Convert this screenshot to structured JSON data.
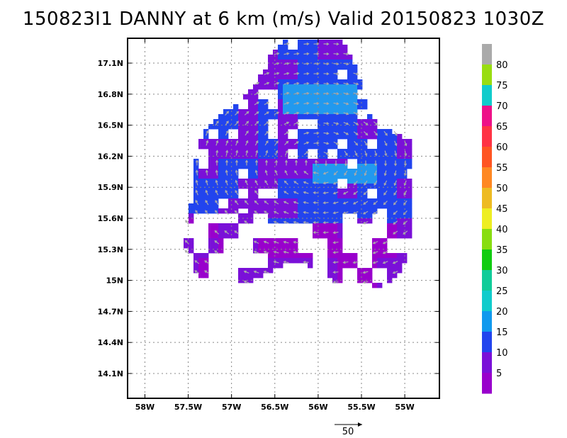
{
  "chart_data": {
    "type": "heatmap",
    "title": "150823I1 DANNY at 6 km (m/s) Valid 20150823 1030Z",
    "xlim": [
      -58.2,
      -54.6
    ],
    "ylim": [
      13.86,
      17.34
    ],
    "x_ticks": [
      "58W",
      "57.5W",
      "57W",
      "56.5W",
      "56W",
      "55.5W",
      "55W"
    ],
    "x_tick_values": [
      -58.0,
      -57.5,
      -57.0,
      -56.5,
      -56.0,
      -55.5,
      -55.0
    ],
    "y_ticks": [
      "17.1N",
      "16.8N",
      "16.5N",
      "16.2N",
      "15.9N",
      "15.6N",
      "15.3N",
      "15N",
      "14.7N",
      "14.4N",
      "14.1N"
    ],
    "y_tick_values": [
      17.1,
      16.8,
      16.5,
      16.2,
      15.9,
      15.6,
      15.3,
      15.0,
      14.7,
      14.4,
      14.1
    ],
    "grid": true,
    "colorbar": {
      "labels": [
        "5",
        "10",
        "15",
        "20",
        "25",
        "30",
        "35",
        "40",
        "45",
        "50",
        "55",
        "60",
        "65",
        "70",
        "75",
        "80"
      ],
      "colors": [
        "#9900cc",
        "#7a10d8",
        "#2244ee",
        "#1199ee",
        "#11cccc",
        "#11cc99",
        "#11cc11",
        "#88dd11",
        "#eeee22",
        "#eebb22",
        "#ff8822",
        "#ff5522",
        "#ff3344",
        "#ee1188",
        "#11cccc",
        "#99dd11",
        "#aaaaaa"
      ]
    },
    "reference_vector": {
      "label": "50",
      "value": 50
    }
  }
}
